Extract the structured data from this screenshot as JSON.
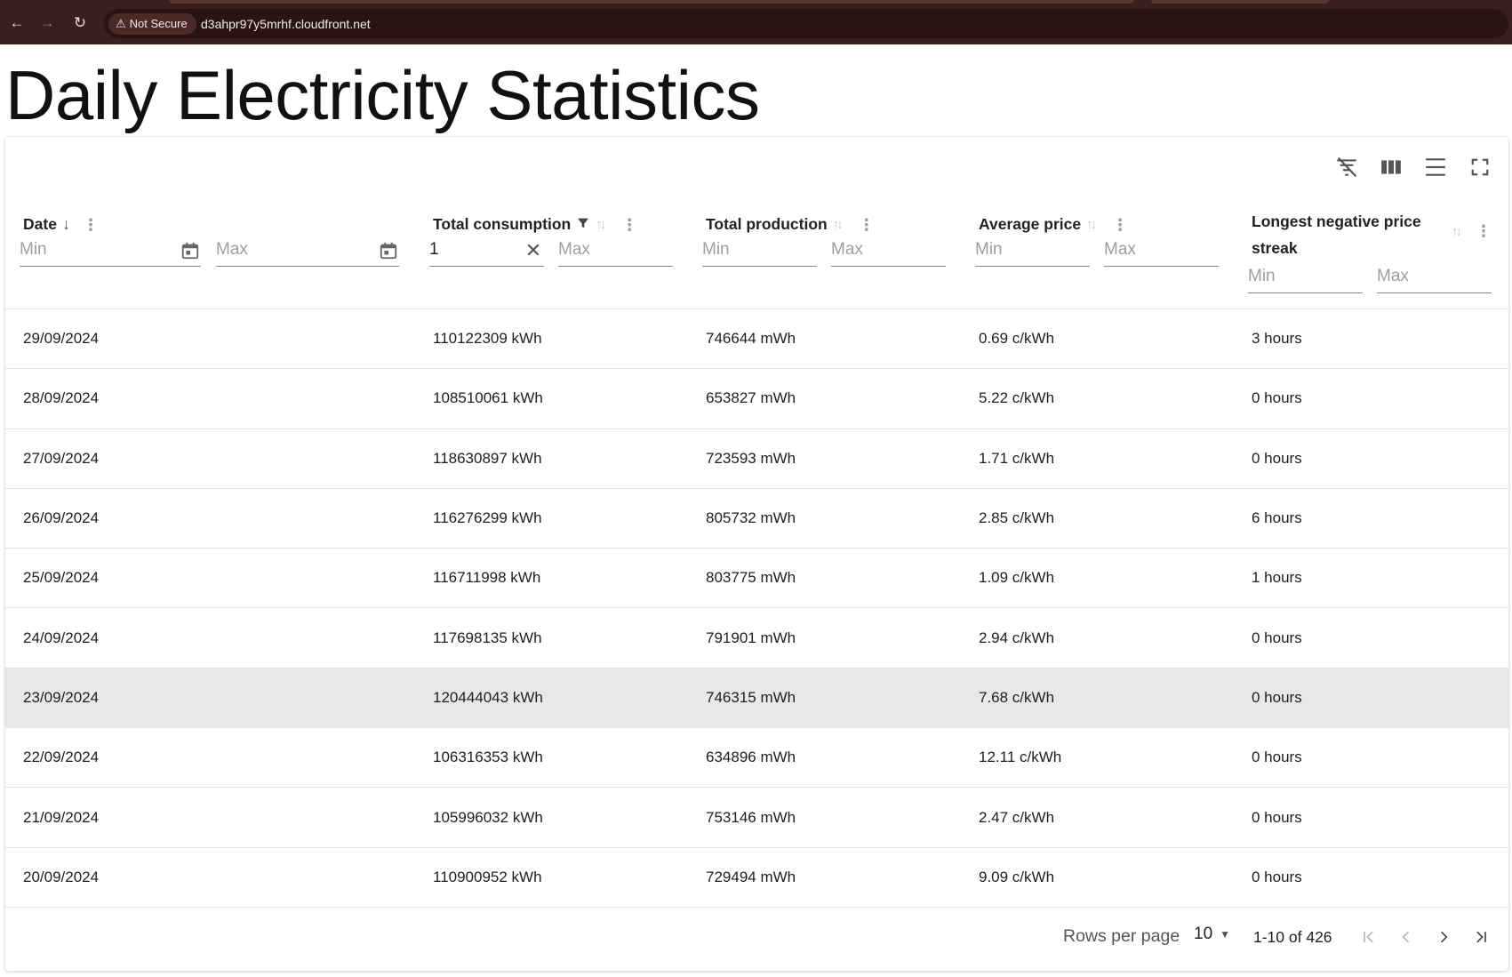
{
  "browser": {
    "security_label": "Not Secure",
    "url": "d3ahpr97y5mrhf.cloudfront.net"
  },
  "page": {
    "title": "Daily Electricity Statistics"
  },
  "table": {
    "columns": [
      {
        "label": "Date",
        "sort": "desc",
        "filter_min_placeholder": "Min",
        "filter_max_placeholder": "Max",
        "filter_min_value": "",
        "filter_max_value": ""
      },
      {
        "label": "Total consumption",
        "sort": "none",
        "filtered": true,
        "filter_min_placeholder": "Min",
        "filter_max_placeholder": "Max",
        "filter_min_value": "1",
        "filter_max_value": ""
      },
      {
        "label": "Total production",
        "sort": "none",
        "filter_min_placeholder": "Min",
        "filter_max_placeholder": "Max",
        "filter_min_value": "",
        "filter_max_value": ""
      },
      {
        "label": "Average price",
        "sort": "none",
        "filter_min_placeholder": "Min",
        "filter_max_placeholder": "Max",
        "filter_min_value": "",
        "filter_max_value": ""
      },
      {
        "label": "Longest negative price streak",
        "sort": "none",
        "filter_min_placeholder": "Min",
        "filter_max_placeholder": "Max",
        "filter_min_value": "",
        "filter_max_value": ""
      }
    ],
    "rows": [
      [
        "29/09/2024",
        "110122309 kWh",
        "746644 mWh",
        "0.69 c/kWh",
        "3 hours"
      ],
      [
        "28/09/2024",
        "108510061 kWh",
        "653827 mWh",
        "5.22 c/kWh",
        "0 hours"
      ],
      [
        "27/09/2024",
        "118630897 kWh",
        "723593 mWh",
        "1.71 c/kWh",
        "0 hours"
      ],
      [
        "26/09/2024",
        "116276299 kWh",
        "805732 mWh",
        "2.85 c/kWh",
        "6 hours"
      ],
      [
        "25/09/2024",
        "116711998 kWh",
        "803775 mWh",
        "1.09 c/kWh",
        "1 hours"
      ],
      [
        "24/09/2024",
        "117698135 kWh",
        "791901 mWh",
        "2.94 c/kWh",
        "0 hours"
      ],
      [
        "23/09/2024",
        "120444043 kWh",
        "746315 mWh",
        "7.68 c/kWh",
        "0 hours"
      ],
      [
        "22/09/2024",
        "106316353 kWh",
        "634896 mWh",
        "12.11 c/kWh",
        "0 hours"
      ],
      [
        "21/09/2024",
        "105996032 kWh",
        "753146 mWh",
        "2.47 c/kWh",
        "0 hours"
      ],
      [
        "20/09/2024",
        "110900952 kWh",
        "729494 mWh",
        "9.09 c/kWh",
        "0 hours"
      ]
    ],
    "highlighted_row_index": 6
  },
  "pagination": {
    "rows_per_page_label": "Rows per page",
    "rows_per_page_value": "10",
    "range_text": "1-10 of 426"
  },
  "icons": {
    "toolbar": [
      "filter-off-icon",
      "view-column-icon",
      "density-icon",
      "fullscreen-icon"
    ],
    "pager": [
      "first-page-icon",
      "prev-page-icon",
      "next-page-icon",
      "last-page-icon"
    ]
  }
}
